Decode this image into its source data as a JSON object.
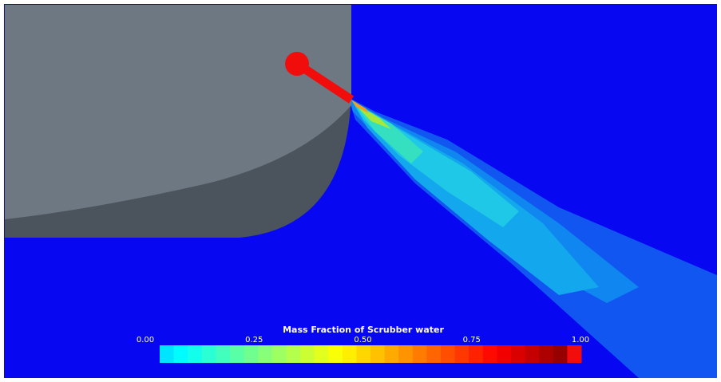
{
  "colorbar": {
    "title": "Mass Fraction of Scrubber water",
    "range": [
      0,
      1
    ],
    "ticks": [
      {
        "value": 0,
        "label": "0.00"
      },
      {
        "value": 0.25,
        "label": "0.25"
      },
      {
        "value": 0.5,
        "label": "0.50"
      },
      {
        "value": 0.75,
        "label": "0.75"
      },
      {
        "value": 1,
        "label": "1.00"
      }
    ]
  }
}
